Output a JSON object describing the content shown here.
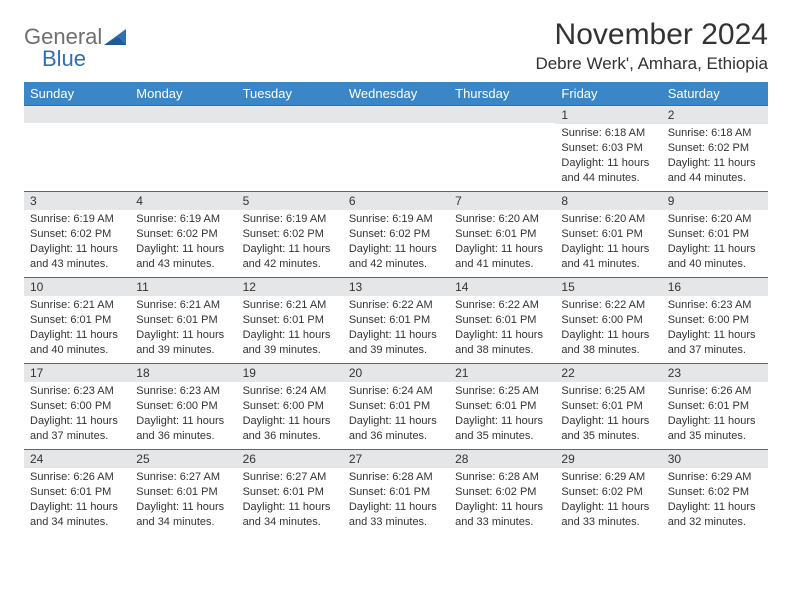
{
  "brand": {
    "name_part1": "General",
    "name_part2": "Blue"
  },
  "title": "November 2024",
  "location": "Debre Werk', Amhara, Ethiopia",
  "colors": {
    "header_bg": "#3b86c7",
    "header_text": "#ffffff",
    "day_bar_bg": "#e4e6e8",
    "day_bar_border": "#2f6fb3",
    "text": "#333333",
    "logo_gray": "#6f6f6f",
    "logo_blue": "#2f6fb3"
  },
  "weekdays": [
    "Sunday",
    "Monday",
    "Tuesday",
    "Wednesday",
    "Thursday",
    "Friday",
    "Saturday"
  ],
  "weeks": [
    [
      {
        "day": "",
        "lines": []
      },
      {
        "day": "",
        "lines": []
      },
      {
        "day": "",
        "lines": []
      },
      {
        "day": "",
        "lines": []
      },
      {
        "day": "",
        "lines": []
      },
      {
        "day": "1",
        "lines": [
          "Sunrise: 6:18 AM",
          "Sunset: 6:03 PM",
          "Daylight: 11 hours and 44 minutes."
        ]
      },
      {
        "day": "2",
        "lines": [
          "Sunrise: 6:18 AM",
          "Sunset: 6:02 PM",
          "Daylight: 11 hours and 44 minutes."
        ]
      }
    ],
    [
      {
        "day": "3",
        "lines": [
          "Sunrise: 6:19 AM",
          "Sunset: 6:02 PM",
          "Daylight: 11 hours and 43 minutes."
        ]
      },
      {
        "day": "4",
        "lines": [
          "Sunrise: 6:19 AM",
          "Sunset: 6:02 PM",
          "Daylight: 11 hours and 43 minutes."
        ]
      },
      {
        "day": "5",
        "lines": [
          "Sunrise: 6:19 AM",
          "Sunset: 6:02 PM",
          "Daylight: 11 hours and 42 minutes."
        ]
      },
      {
        "day": "6",
        "lines": [
          "Sunrise: 6:19 AM",
          "Sunset: 6:02 PM",
          "Daylight: 11 hours and 42 minutes."
        ]
      },
      {
        "day": "7",
        "lines": [
          "Sunrise: 6:20 AM",
          "Sunset: 6:01 PM",
          "Daylight: 11 hours and 41 minutes."
        ]
      },
      {
        "day": "8",
        "lines": [
          "Sunrise: 6:20 AM",
          "Sunset: 6:01 PM",
          "Daylight: 11 hours and 41 minutes."
        ]
      },
      {
        "day": "9",
        "lines": [
          "Sunrise: 6:20 AM",
          "Sunset: 6:01 PM",
          "Daylight: 11 hours and 40 minutes."
        ]
      }
    ],
    [
      {
        "day": "10",
        "lines": [
          "Sunrise: 6:21 AM",
          "Sunset: 6:01 PM",
          "Daylight: 11 hours and 40 minutes."
        ]
      },
      {
        "day": "11",
        "lines": [
          "Sunrise: 6:21 AM",
          "Sunset: 6:01 PM",
          "Daylight: 11 hours and 39 minutes."
        ]
      },
      {
        "day": "12",
        "lines": [
          "Sunrise: 6:21 AM",
          "Sunset: 6:01 PM",
          "Daylight: 11 hours and 39 minutes."
        ]
      },
      {
        "day": "13",
        "lines": [
          "Sunrise: 6:22 AM",
          "Sunset: 6:01 PM",
          "Daylight: 11 hours and 39 minutes."
        ]
      },
      {
        "day": "14",
        "lines": [
          "Sunrise: 6:22 AM",
          "Sunset: 6:01 PM",
          "Daylight: 11 hours and 38 minutes."
        ]
      },
      {
        "day": "15",
        "lines": [
          "Sunrise: 6:22 AM",
          "Sunset: 6:00 PM",
          "Daylight: 11 hours and 38 minutes."
        ]
      },
      {
        "day": "16",
        "lines": [
          "Sunrise: 6:23 AM",
          "Sunset: 6:00 PM",
          "Daylight: 11 hours and 37 minutes."
        ]
      }
    ],
    [
      {
        "day": "17",
        "lines": [
          "Sunrise: 6:23 AM",
          "Sunset: 6:00 PM",
          "Daylight: 11 hours and 37 minutes."
        ]
      },
      {
        "day": "18",
        "lines": [
          "Sunrise: 6:23 AM",
          "Sunset: 6:00 PM",
          "Daylight: 11 hours and 36 minutes."
        ]
      },
      {
        "day": "19",
        "lines": [
          "Sunrise: 6:24 AM",
          "Sunset: 6:00 PM",
          "Daylight: 11 hours and 36 minutes."
        ]
      },
      {
        "day": "20",
        "lines": [
          "Sunrise: 6:24 AM",
          "Sunset: 6:01 PM",
          "Daylight: 11 hours and 36 minutes."
        ]
      },
      {
        "day": "21",
        "lines": [
          "Sunrise: 6:25 AM",
          "Sunset: 6:01 PM",
          "Daylight: 11 hours and 35 minutes."
        ]
      },
      {
        "day": "22",
        "lines": [
          "Sunrise: 6:25 AM",
          "Sunset: 6:01 PM",
          "Daylight: 11 hours and 35 minutes."
        ]
      },
      {
        "day": "23",
        "lines": [
          "Sunrise: 6:26 AM",
          "Sunset: 6:01 PM",
          "Daylight: 11 hours and 35 minutes."
        ]
      }
    ],
    [
      {
        "day": "24",
        "lines": [
          "Sunrise: 6:26 AM",
          "Sunset: 6:01 PM",
          "Daylight: 11 hours and 34 minutes."
        ]
      },
      {
        "day": "25",
        "lines": [
          "Sunrise: 6:27 AM",
          "Sunset: 6:01 PM",
          "Daylight: 11 hours and 34 minutes."
        ]
      },
      {
        "day": "26",
        "lines": [
          "Sunrise: 6:27 AM",
          "Sunset: 6:01 PM",
          "Daylight: 11 hours and 34 minutes."
        ]
      },
      {
        "day": "27",
        "lines": [
          "Sunrise: 6:28 AM",
          "Sunset: 6:01 PM",
          "Daylight: 11 hours and 33 minutes."
        ]
      },
      {
        "day": "28",
        "lines": [
          "Sunrise: 6:28 AM",
          "Sunset: 6:02 PM",
          "Daylight: 11 hours and 33 minutes."
        ]
      },
      {
        "day": "29",
        "lines": [
          "Sunrise: 6:29 AM",
          "Sunset: 6:02 PM",
          "Daylight: 11 hours and 33 minutes."
        ]
      },
      {
        "day": "30",
        "lines": [
          "Sunrise: 6:29 AM",
          "Sunset: 6:02 PM",
          "Daylight: 11 hours and 32 minutes."
        ]
      }
    ]
  ]
}
